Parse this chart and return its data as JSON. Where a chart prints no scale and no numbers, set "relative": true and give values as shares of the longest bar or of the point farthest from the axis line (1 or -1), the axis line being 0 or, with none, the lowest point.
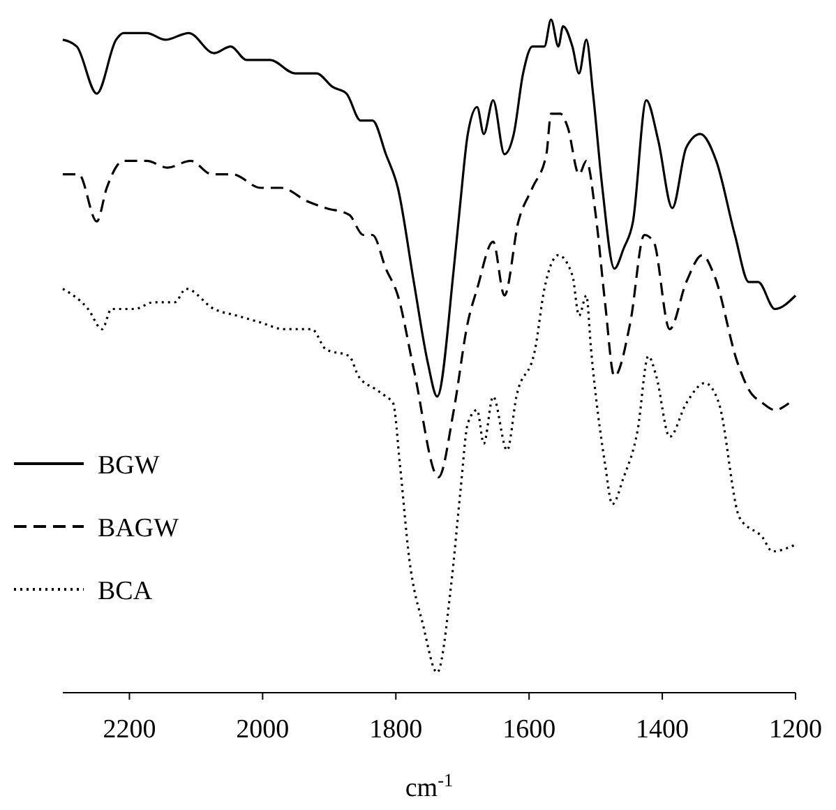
{
  "chart_data": {
    "type": "line",
    "relative": true,
    "xlabel": "cm$^{-1}$",
    "xlim": [
      2300,
      1200
    ],
    "xticks": [
      2200,
      2000,
      1800,
      1600,
      1400,
      1200
    ],
    "legend": "left",
    "series": [
      {
        "name": "BGW",
        "color": "#000000",
        "line_style": "solid",
        "x": [
          2300,
          2279,
          2249,
          2220,
          2209,
          2174,
          2146,
          2111,
          2073,
          2048,
          2024,
          1989,
          1951,
          1919,
          1895,
          1874,
          1853,
          1835,
          1815,
          1797,
          1773,
          1752,
          1738,
          1713,
          1703,
          1692,
          1678,
          1668,
          1654,
          1637,
          1623,
          1609,
          1595,
          1577,
          1567,
          1556,
          1549,
          1535,
          1525,
          1514,
          1504,
          1490,
          1472,
          1458,
          1444,
          1424,
          1406,
          1385,
          1364,
          1343,
          1319,
          1291,
          1270,
          1256,
          1231,
          1200
        ],
        "values": [
          0.97,
          0.96,
          0.89,
          0.97,
          0.98,
          0.98,
          0.97,
          0.98,
          0.95,
          0.96,
          0.94,
          0.94,
          0.92,
          0.92,
          0.9,
          0.89,
          0.85,
          0.85,
          0.8,
          0.75,
          0.61,
          0.49,
          0.44,
          0.63,
          0.73,
          0.83,
          0.87,
          0.83,
          0.88,
          0.8,
          0.83,
          0.92,
          0.96,
          0.96,
          1.0,
          0.96,
          0.99,
          0.96,
          0.92,
          0.97,
          0.89,
          0.75,
          0.63,
          0.66,
          0.7,
          0.88,
          0.82,
          0.72,
          0.81,
          0.83,
          0.79,
          0.68,
          0.61,
          0.61,
          0.57,
          0.59
        ]
      },
      {
        "name": "BAGW",
        "color": "#000000",
        "line_style": "dashed",
        "x": [
          2300,
          2276,
          2249,
          2234,
          2209,
          2174,
          2143,
          2108,
          2076,
          2045,
          2003,
          1972,
          1933,
          1905,
          1870,
          1849,
          1835,
          1815,
          1797,
          1773,
          1736,
          1713,
          1692,
          1678,
          1654,
          1637,
          1616,
          1595,
          1574,
          1567,
          1553,
          1542,
          1525,
          1514,
          1500,
          1486,
          1472,
          1448,
          1427,
          1413,
          1389,
          1364,
          1340,
          1322,
          1287,
          1270,
          1249,
          1231,
          1210
        ],
        "values": [
          0.77,
          0.77,
          0.7,
          0.75,
          0.79,
          0.79,
          0.78,
          0.79,
          0.77,
          0.77,
          0.75,
          0.75,
          0.73,
          0.72,
          0.71,
          0.68,
          0.68,
          0.63,
          0.59,
          0.48,
          0.32,
          0.42,
          0.55,
          0.6,
          0.67,
          0.59,
          0.7,
          0.75,
          0.8,
          0.86,
          0.86,
          0.84,
          0.77,
          0.79,
          0.71,
          0.58,
          0.47,
          0.55,
          0.68,
          0.67,
          0.54,
          0.61,
          0.65,
          0.62,
          0.49,
          0.45,
          0.43,
          0.42,
          0.43
        ]
      },
      {
        "name": "BCA",
        "color": "#000000",
        "line_style": "dotted",
        "x": [
          2300,
          2262,
          2241,
          2227,
          2192,
          2164,
          2132,
          2115,
          2073,
          2038,
          2003,
          1968,
          1926,
          1905,
          1870,
          1856,
          1829,
          1815,
          1804,
          1794,
          1780,
          1759,
          1738,
          1717,
          1703,
          1692,
          1678,
          1668,
          1654,
          1633,
          1619,
          1591,
          1577,
          1556,
          1535,
          1525,
          1514,
          1507,
          1486,
          1475,
          1458,
          1437,
          1421,
          1409,
          1389,
          1364,
          1336,
          1315,
          1284,
          1249,
          1235,
          1200
        ],
        "values": [
          0.6,
          0.57,
          0.54,
          0.57,
          0.57,
          0.58,
          0.58,
          0.6,
          0.57,
          0.56,
          0.55,
          0.54,
          0.54,
          0.51,
          0.5,
          0.47,
          0.45,
          0.44,
          0.43,
          0.34,
          0.2,
          0.1,
          0.03,
          0.16,
          0.3,
          0.4,
          0.42,
          0.37,
          0.44,
          0.36,
          0.44,
          0.51,
          0.6,
          0.65,
          0.62,
          0.56,
          0.59,
          0.51,
          0.34,
          0.28,
          0.32,
          0.39,
          0.5,
          0.47,
          0.38,
          0.43,
          0.46,
          0.43,
          0.26,
          0.23,
          0.21,
          0.22
        ]
      }
    ]
  }
}
